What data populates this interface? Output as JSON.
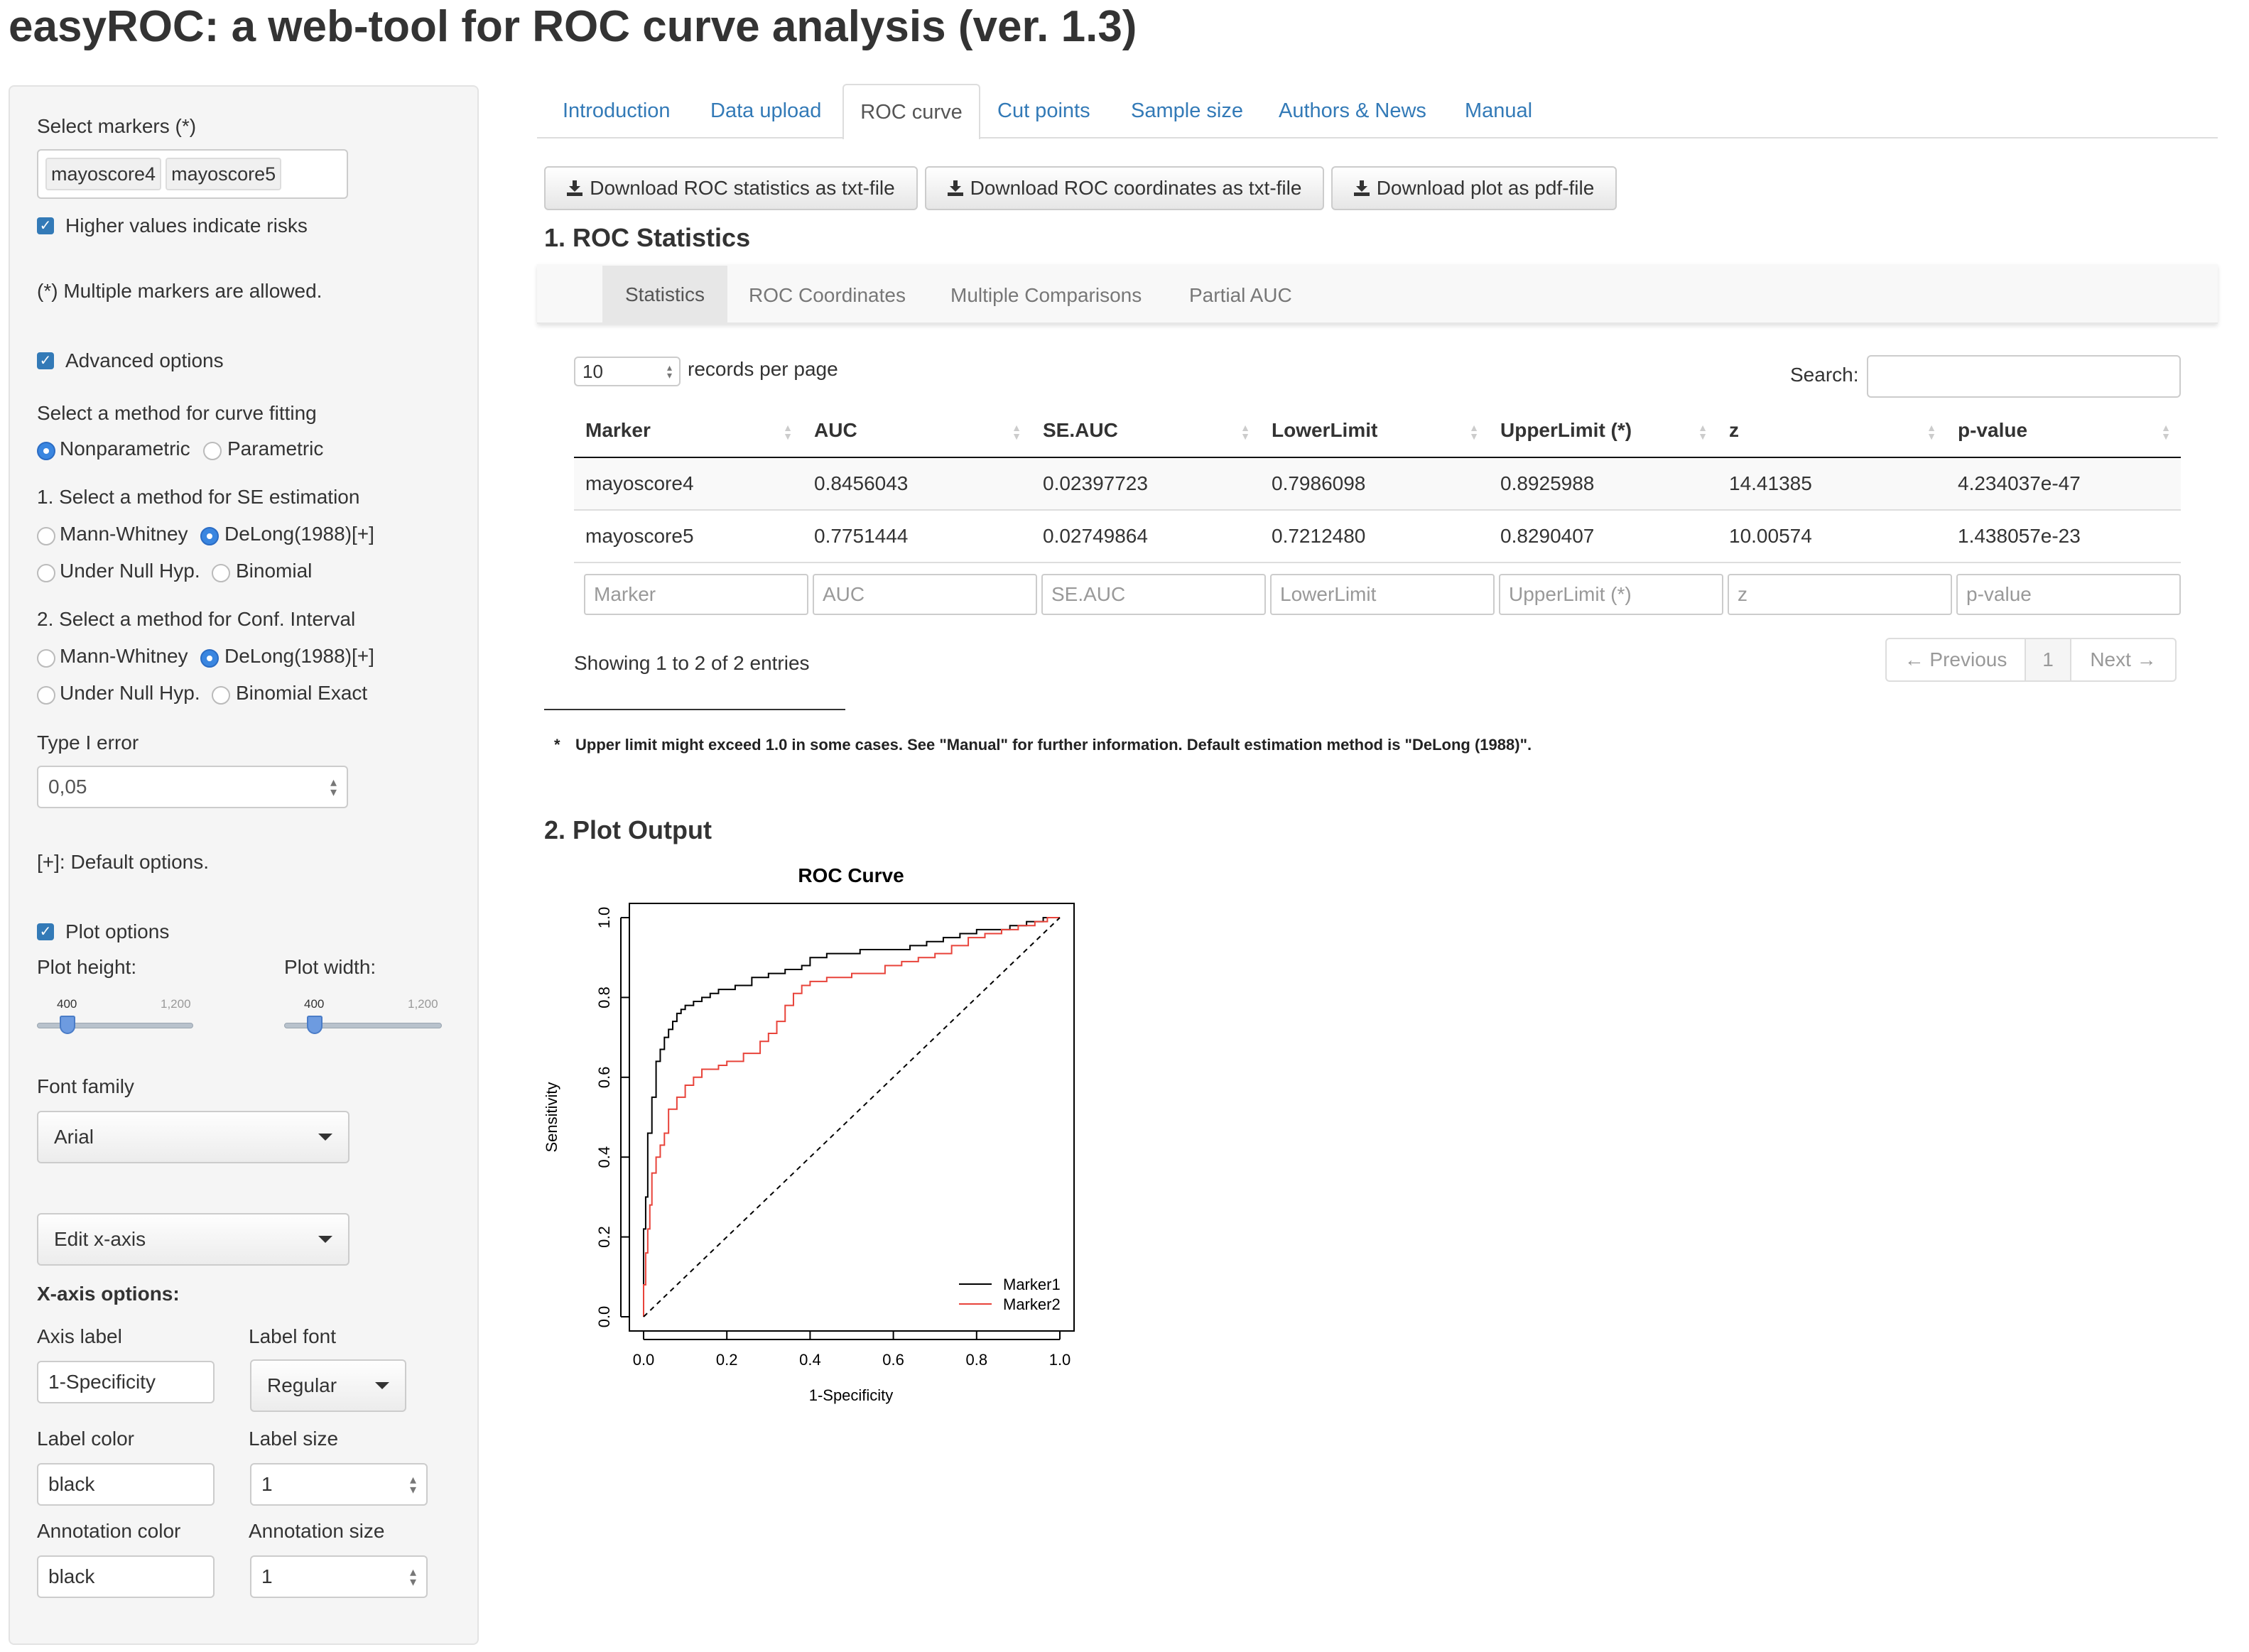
{
  "app_title": "easyROC: a web-tool for ROC curve analysis (ver. 1.3)",
  "sidebar": {
    "select_markers_label": "Select markers (*)",
    "selected_markers": [
      "mayoscore4",
      "mayoscore5"
    ],
    "higher_values_label": "Higher values indicate risks",
    "multiple_markers_note": "(*) Multiple markers are allowed.",
    "advanced_options_label": "Advanced options",
    "curve_fitting_label": "Select a method for curve fitting",
    "curve_fitting_options": [
      "Nonparametric",
      "Parametric"
    ],
    "se_method_label": "1. Select a method for SE estimation",
    "se_options": [
      "Mann-Whitney",
      "DeLong(1988)[+]",
      "Under Null Hyp.",
      "Binomial"
    ],
    "ci_method_label": "2. Select a method for Conf. Interval",
    "ci_options": [
      "Mann-Whitney",
      "DeLong(1988)[+]",
      "Under Null Hyp.",
      "Binomial Exact"
    ],
    "type1_error_label": "Type I error",
    "type1_error_value": "0,05",
    "default_options_note": "[+]: Default options.",
    "plot_options_label": "Plot options",
    "plot_height_label": "Plot height:",
    "plot_width_label": "Plot width:",
    "slider_min_label": "400",
    "slider_max_label": "1,200",
    "plot_height_value": 400,
    "plot_width_value": 400,
    "font_family_label": "Font family",
    "font_family_value": "Arial",
    "edit_axis_value": "Edit x-axis",
    "xaxis_options_label": "X-axis options:",
    "axis_label_label": "Axis label",
    "axis_label_value": "1-Specificity",
    "label_font_label": "Label font",
    "label_font_value": "Regular",
    "label_color_label": "Label color",
    "label_color_value": "black",
    "label_size_label": "Label size",
    "label_size_value": "1",
    "annotation_color_label": "Annotation color",
    "annotation_color_value": "black",
    "annotation_size_label": "Annotation size",
    "annotation_size_value": "1"
  },
  "tabs": [
    "Introduction",
    "Data upload",
    "ROC curve",
    "Cut points",
    "Sample size",
    "Authors & News",
    "Manual"
  ],
  "active_tab": "ROC curve",
  "downloads": {
    "stats_txt": "Download ROC statistics as txt-file",
    "coords_txt": "Download ROC coordinates as txt-file",
    "plot_pdf": "Download plot as pdf-file"
  },
  "section1_title": "1. ROC Statistics",
  "subtabs": [
    "Statistics",
    "ROC Coordinates",
    "Multiple Comparisons",
    "Partial AUC"
  ],
  "records": {
    "value": "10",
    "label": "records per page"
  },
  "search_label": "Search:",
  "table": {
    "columns": [
      "Marker",
      "AUC",
      "SE.AUC",
      "LowerLimit",
      "UpperLimit (*)",
      "z",
      "p-value"
    ],
    "rows": [
      [
        "mayoscore4",
        "0.8456043",
        "0.02397723",
        "0.7986098",
        "0.8925988",
        "14.41385",
        "4.234037e-47"
      ],
      [
        "mayoscore5",
        "0.7751444",
        "0.02749864",
        "0.7212480",
        "0.8290407",
        "10.00574",
        "1.438057e-23"
      ]
    ]
  },
  "showing_text": "Showing 1 to 2 of 2 entries",
  "pager": {
    "prev": "← Previous",
    "page": "1",
    "next": "Next →"
  },
  "footnote_star": "*",
  "footnote": "Upper limit might exceed 1.0 in some cases. See \"Manual\" for further information. Default estimation method is \"DeLong (1988)\".",
  "section2_title": "2. Plot Output",
  "chart_data": {
    "type": "line",
    "title": "ROC Curve",
    "xlabel": "1-Specificity",
    "ylabel": "Sensitivity",
    "xlim": [
      0,
      1
    ],
    "ylim": [
      0,
      1
    ],
    "xticks": [
      "0.0",
      "0.2",
      "0.4",
      "0.6",
      "0.8",
      "1.0"
    ],
    "yticks": [
      "0.0",
      "0.2",
      "0.4",
      "0.6",
      "0.8",
      "1.0"
    ],
    "legend_position": "bottom-right",
    "grid": false,
    "series": [
      {
        "name": "Marker1",
        "color": "#000000",
        "x": [
          0,
          0,
          0.005,
          0.01,
          0.01,
          0.02,
          0.02,
          0.03,
          0.03,
          0.04,
          0.05,
          0.06,
          0.07,
          0.08,
          0.09,
          0.1,
          0.12,
          0.14,
          0.16,
          0.18,
          0.22,
          0.26,
          0.3,
          0.34,
          0.38,
          0.4,
          0.44,
          0.48,
          0.52,
          0.56,
          0.6,
          0.64,
          0.68,
          0.72,
          0.76,
          0.8,
          0.84,
          0.88,
          0.92,
          0.96,
          1.0
        ],
        "y": [
          0,
          0.1,
          0.22,
          0.3,
          0.4,
          0.46,
          0.52,
          0.55,
          0.6,
          0.64,
          0.67,
          0.7,
          0.72,
          0.74,
          0.76,
          0.77,
          0.78,
          0.79,
          0.8,
          0.81,
          0.82,
          0.83,
          0.85,
          0.86,
          0.87,
          0.88,
          0.9,
          0.91,
          0.91,
          0.92,
          0.92,
          0.92,
          0.93,
          0.94,
          0.95,
          0.96,
          0.97,
          0.97,
          0.98,
          0.99,
          1.0
        ]
      },
      {
        "name": "Marker2",
        "color": "#e8433a",
        "x": [
          0,
          0.005,
          0.01,
          0.015,
          0.02,
          0.03,
          0.04,
          0.05,
          0.06,
          0.08,
          0.1,
          0.12,
          0.14,
          0.16,
          0.18,
          0.2,
          0.24,
          0.28,
          0.3,
          0.32,
          0.34,
          0.36,
          0.38,
          0.4,
          0.42,
          0.44,
          0.46,
          0.5,
          0.54,
          0.58,
          0.62,
          0.66,
          0.7,
          0.74,
          0.78,
          0.82,
          0.86,
          0.9,
          0.94,
          0.97,
          1.0
        ],
        "y": [
          0,
          0.08,
          0.16,
          0.22,
          0.28,
          0.36,
          0.4,
          0.43,
          0.46,
          0.52,
          0.55,
          0.58,
          0.6,
          0.62,
          0.62,
          0.63,
          0.64,
          0.66,
          0.69,
          0.71,
          0.74,
          0.78,
          0.81,
          0.83,
          0.84,
          0.84,
          0.85,
          0.85,
          0.86,
          0.86,
          0.88,
          0.89,
          0.9,
          0.91,
          0.93,
          0.95,
          0.96,
          0.97,
          0.98,
          0.99,
          1.0
        ]
      },
      {
        "name": "",
        "color": "#000000",
        "dashed": true,
        "x": [
          0,
          1
        ],
        "y": [
          0,
          1
        ]
      }
    ]
  }
}
